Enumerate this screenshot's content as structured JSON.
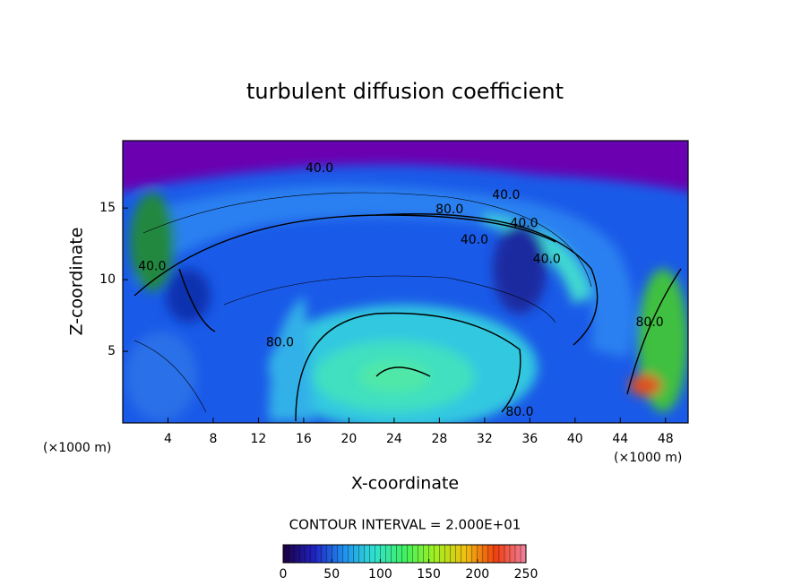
{
  "chart_data": {
    "type": "contour",
    "title": "turbulent diffusion coefficient",
    "x_label": "X-coordinate",
    "y_label": "Z-coordinate",
    "x_unit_left": "(×1000 m)",
    "x_unit_right": "(×1000 m)",
    "contour_interval": "CONTOUR INTERVAL = 2.000E+01",
    "xlim": [
      0,
      50
    ],
    "ylim": [
      0,
      19.7
    ],
    "xticks": [
      4,
      8,
      12,
      16,
      20,
      24,
      28,
      32,
      36,
      40,
      44,
      48
    ],
    "yticks": [
      5,
      10,
      15
    ],
    "contour_labels": [
      {
        "text": "40.0",
        "x": 17.4,
        "y": 17.75
      },
      {
        "text": "40.0",
        "x": 33.9,
        "y": 15.9
      },
      {
        "text": "80.0",
        "x": 28.9,
        "y": 14.9
      },
      {
        "text": "40.0",
        "x": 35.5,
        "y": 13.9
      },
      {
        "text": "40.0",
        "x": 31.1,
        "y": 12.75
      },
      {
        "text": "40.0",
        "x": 37.5,
        "y": 11.4
      },
      {
        "text": "40.0",
        "x": 2.6,
        "y": 10.9
      },
      {
        "text": "80.0",
        "x": 13.9,
        "y": 5.6
      },
      {
        "text": "80.0",
        "x": 35.1,
        "y": 0.75
      },
      {
        "text": "80.0",
        "x": 46.6,
        "y": 7
      }
    ],
    "colorbar": {
      "lim": [
        0,
        250
      ],
      "ticks": [
        0,
        50,
        100,
        150,
        200,
        250
      ],
      "colors": [
        "#1a0040",
        "#2020c0",
        "#2090f0",
        "#30e0d0",
        "#40f060",
        "#a0f020",
        "#f0c010",
        "#f04010",
        "#f080a0"
      ]
    }
  }
}
